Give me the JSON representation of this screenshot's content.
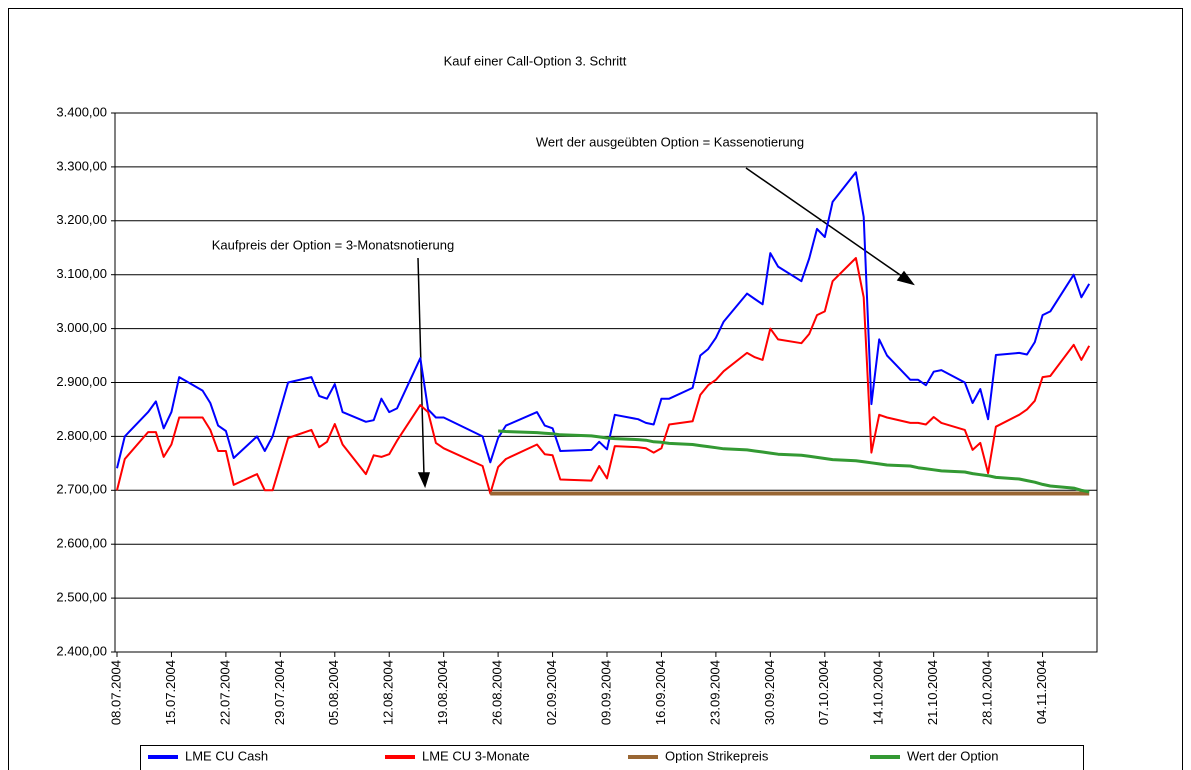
{
  "chart_data": {
    "type": "line",
    "title": "Kauf einer Call-Option   3. Schritt",
    "annotations": [
      "Wert der ausgeübten Option = Kassenotierung",
      "Kaufpreis der Option = 3-Monatsnotierung"
    ],
    "x": [
      "08.07.2004",
      "09.07.2004",
      "12.07.2004",
      "13.07.2004",
      "14.07.2004",
      "15.07.2004",
      "16.07.2004",
      "19.07.2004",
      "20.07.2004",
      "21.07.2004",
      "22.07.2004",
      "23.07.2004",
      "26.07.2004",
      "27.07.2004",
      "28.07.2004",
      "30.07.2004",
      "02.08.2004",
      "03.08.2004",
      "04.08.2004",
      "05.08.2004",
      "06.08.2004",
      "09.08.2004",
      "10.08.2004",
      "11.08.2004",
      "12.08.2004",
      "13.08.2004",
      "16.08.2004",
      "17.08.2004",
      "18.08.2004",
      "19.08.2004",
      "24.08.2004",
      "25.08.2004",
      "26.08.2004",
      "27.08.2004",
      "31.08.2004",
      "01.09.2004",
      "02.09.2004",
      "03.09.2004",
      "07.09.2004",
      "08.09.2004",
      "09.09.2004",
      "10.09.2004",
      "13.09.2004",
      "14.09.2004",
      "15.09.2004",
      "16.09.2004",
      "17.09.2004",
      "20.09.2004",
      "21.09.2004",
      "22.09.2004",
      "23.09.2004",
      "24.09.2004",
      "27.09.2004",
      "28.09.2004",
      "29.09.2004",
      "30.09.2004",
      "01.10.2004",
      "04.10.2004",
      "05.10.2004",
      "06.10.2004",
      "07.10.2004",
      "08.10.2004",
      "11.10.2004",
      "12.10.2004",
      "13.10.2004",
      "14.10.2004",
      "15.10.2004",
      "18.10.2004",
      "19.10.2004",
      "20.10.2004",
      "21.10.2004",
      "22.10.2004",
      "25.10.2004",
      "26.10.2004",
      "27.10.2004",
      "28.10.2004",
      "29.10.2004",
      "01.11.2004",
      "02.11.2004",
      "03.11.2004",
      "04.11.2004",
      "05.11.2004",
      "08.11.2004",
      "09.11.2004",
      "10.11.2004"
    ],
    "series": [
      {
        "name": "LME CU Cash",
        "color": "#0000ff",
        "values": [
          2741,
          2800,
          2845,
          2865,
          2815,
          2845,
          2910,
          2885,
          2862,
          2820,
          2810,
          2760,
          2800,
          2773,
          2800,
          2900,
          2910,
          2875,
          2870,
          2897,
          2845,
          2827,
          2830,
          2870,
          2845,
          2852,
          2945,
          2850,
          2835,
          2835,
          2800,
          2752,
          2797,
          2820,
          2845,
          2820,
          2815,
          2773,
          2775,
          2790,
          2776,
          2840,
          2832,
          2825,
          2822,
          2870,
          2870,
          2890,
          2950,
          2962,
          2983,
          3013,
          3065,
          3055,
          3045,
          3140,
          3115,
          3088,
          3130,
          3185,
          3170,
          3235,
          3290,
          3207,
          2860,
          2980,
          2950,
          2905,
          2905,
          2895,
          2920,
          2923,
          2900,
          2862,
          2888,
          2832,
          2951,
          2955,
          2952,
          2975,
          3025,
          3032,
          3100,
          3058,
          3083
        ]
      },
      {
        "name": "LME CU 3-Monate",
        "color": "#ff0000",
        "values": [
          2700,
          2758,
          2808,
          2808,
          2762,
          2785,
          2835,
          2835,
          2812,
          2773,
          2773,
          2710,
          2730,
          2700,
          2700,
          2797,
          2812,
          2780,
          2790,
          2823,
          2785,
          2730,
          2765,
          2762,
          2767,
          2792,
          2858,
          2845,
          2788,
          2778,
          2745,
          2694,
          2743,
          2758,
          2785,
          2767,
          2765,
          2720,
          2718,
          2745,
          2722,
          2782,
          2780,
          2778,
          2770,
          2778,
          2822,
          2828,
          2877,
          2895,
          2905,
          2921,
          2955,
          2947,
          2942,
          3000,
          2980,
          2973,
          2990,
          3025,
          3032,
          3088,
          3131,
          3058,
          2770,
          2840,
          2835,
          2825,
          2825,
          2822,
          2836,
          2825,
          2812,
          2775,
          2788,
          2732,
          2818,
          2840,
          2850,
          2866,
          2910,
          2912,
          2970,
          2942,
          2968
        ]
      },
      {
        "name": "Option Strikepreis",
        "color": "#996633",
        "values": [
          null,
          null,
          null,
          null,
          null,
          null,
          null,
          null,
          null,
          null,
          null,
          null,
          null,
          null,
          null,
          null,
          null,
          null,
          null,
          null,
          null,
          null,
          null,
          null,
          null,
          null,
          null,
          null,
          null,
          null,
          null,
          2694,
          2694,
          2694,
          2694,
          2694,
          2694,
          2694,
          2694,
          2694,
          2694,
          2694,
          2694,
          2694,
          2694,
          2694,
          2694,
          2694,
          2694,
          2694,
          2694,
          2694,
          2694,
          2694,
          2694,
          2694,
          2694,
          2694,
          2694,
          2694,
          2694,
          2694,
          2694,
          2694,
          2694,
          2694,
          2694,
          2694,
          2694,
          2694,
          2694,
          2694,
          2694,
          2694,
          2694,
          2694,
          2694,
          2694,
          2694,
          2694,
          2694,
          2694,
          2694,
          2694,
          2694
        ]
      },
      {
        "name": "Wert der Option",
        "color": "#339933",
        "values": [
          null,
          null,
          null,
          null,
          null,
          null,
          null,
          null,
          null,
          null,
          null,
          null,
          null,
          null,
          null,
          null,
          null,
          null,
          null,
          null,
          null,
          null,
          null,
          null,
          null,
          null,
          null,
          null,
          null,
          null,
          null,
          null,
          2810,
          2809,
          2807,
          2806,
          2805,
          2803,
          2801,
          2799,
          2797,
          2796,
          2794,
          2793,
          2790,
          2789,
          2787,
          2785,
          2783,
          2781,
          2779,
          2777,
          2775,
          2773,
          2771,
          2769,
          2767,
          2765,
          2763,
          2761,
          2759,
          2757,
          2755,
          2753,
          2751,
          2749,
          2747,
          2745,
          2742,
          2740,
          2738,
          2736,
          2734,
          2731,
          2729,
          2727,
          2724,
          2721,
          2718,
          2715,
          2711,
          2708,
          2704,
          2700,
          2697
        ]
      }
    ],
    "xlim": [
      "08.07.2004",
      "11.11.2004"
    ],
    "xticks": [
      "08.07.2004",
      "15.07.2004",
      "22.07.2004",
      "29.07.2004",
      "05.08.2004",
      "12.08.2004",
      "19.08.2004",
      "26.08.2004",
      "02.09.2004",
      "09.09.2004",
      "16.09.2004",
      "23.09.2004",
      "30.09.2004",
      "07.10.2004",
      "14.10.2004",
      "21.10.2004",
      "28.10.2004",
      "04.11.2004"
    ],
    "ylim": [
      2400,
      3400
    ],
    "yticks": [
      {
        "value": 2400,
        "label": "2.400,00"
      },
      {
        "value": 2500,
        "label": "2.500,00"
      },
      {
        "value": 2600,
        "label": "2.600,00"
      },
      {
        "value": 2700,
        "label": "2.700,00"
      },
      {
        "value": 2800,
        "label": "2.800,00"
      },
      {
        "value": 2900,
        "label": "2.900,00"
      },
      {
        "value": 3000,
        "label": "3.000,00"
      },
      {
        "value": 3100,
        "label": "3.100,00"
      },
      {
        "value": 3200,
        "label": "3.200,00"
      },
      {
        "value": 3300,
        "label": "3.300,00"
      },
      {
        "value": 3400,
        "label": "3.400,00"
      }
    ],
    "grid": true,
    "legend": "bottom"
  }
}
